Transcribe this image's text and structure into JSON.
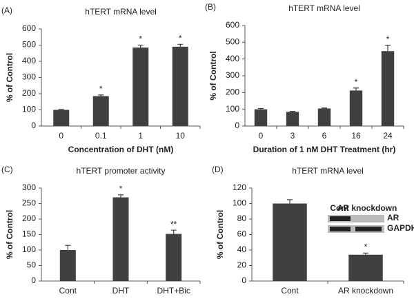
{
  "chart_data": [
    {
      "type": "bar",
      "panel": "(A)",
      "title": "hTERT mRNA level",
      "xlabel": "Concentration of DHT (nM)",
      "ylabel": "% of Control",
      "categories": [
        "0",
        "0.1",
        "1",
        "10"
      ],
      "values": [
        100,
        185,
        485,
        490
      ],
      "errors": [
        3,
        7,
        15,
        15
      ],
      "markers": [
        null,
        "*",
        "*",
        "*"
      ],
      "color": "#404040",
      "ylim": [
        0,
        600
      ],
      "yticks": [
        0,
        100,
        200,
        300,
        400,
        500,
        600
      ]
    },
    {
      "type": "bar",
      "panel": "(B)",
      "title": "hTERT mRNA level",
      "xlabel": "Duration of 1 nM DHT Treatment (hr)",
      "ylabel": "% of Control",
      "categories": [
        "0",
        "3",
        "6",
        "16",
        "24"
      ],
      "values": [
        100,
        85,
        105,
        212,
        447
      ],
      "errors": [
        5,
        3,
        3,
        15,
        35
      ],
      "markers": [
        null,
        null,
        null,
        "*",
        "*"
      ],
      "color": "#404040",
      "ylim": [
        0,
        600
      ],
      "yticks": [
        0,
        100,
        200,
        300,
        400,
        500,
        600
      ]
    },
    {
      "type": "bar",
      "panel": "(C)",
      "title": "hTERT promoter activity",
      "ylabel": "% of Control",
      "categories": [
        "Cont",
        "DHT",
        "DHT+Bic"
      ],
      "values": [
        100,
        270,
        152
      ],
      "errors": [
        15,
        8,
        12
      ],
      "markers": [
        null,
        "*",
        "**"
      ],
      "color": "#404040",
      "ylim": [
        0,
        300
      ],
      "yticks": [
        0,
        50,
        100,
        150,
        200,
        250,
        300
      ]
    },
    {
      "type": "bar",
      "panel": "(D)",
      "title": "hTERT mRNA level",
      "ylabel": "% of Control",
      "categories": [
        "Cont",
        "AR knockdown"
      ],
      "values": [
        100,
        34
      ],
      "errors": [
        5,
        2
      ],
      "markers": [
        null,
        "*"
      ],
      "color": "#404040",
      "ylim": [
        0,
        120
      ],
      "yticks": [
        0,
        20,
        40,
        60,
        80,
        100,
        120
      ],
      "inset": {
        "lanes": [
          "Cont",
          "AR knockdown"
        ],
        "bands": [
          "AR",
          "GAPDH"
        ]
      }
    }
  ]
}
